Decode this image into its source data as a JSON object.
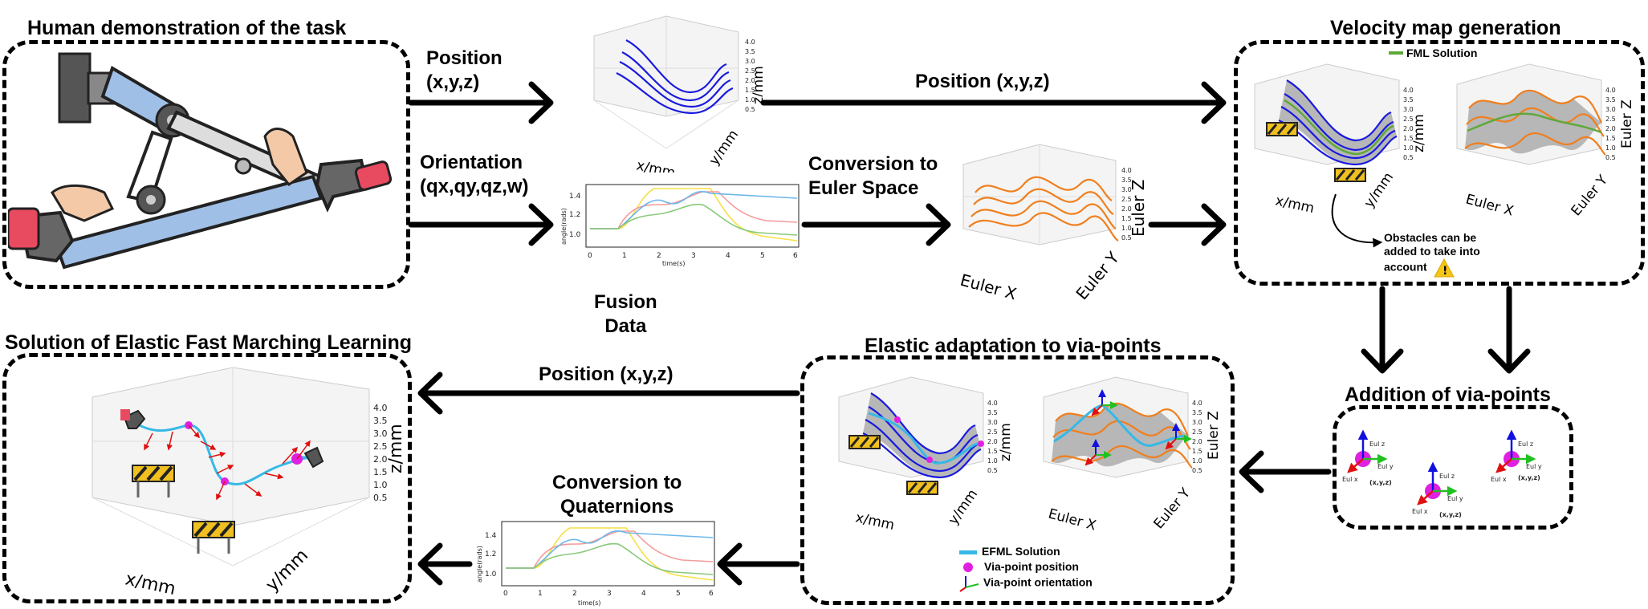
{
  "titles": {
    "human_demo": "Human demonstration of the task",
    "velocity_map": "Velocity map generation",
    "solution_efml": "Solution of Elastic Fast Marching Learning",
    "elastic_adaptation": "Elastic adaptation to via-points",
    "addition_viapoints": "Addition of via-points"
  },
  "flow_labels": {
    "position_1": "Position",
    "position_1b": "(x,y,z)",
    "orientation_1": "Orientation",
    "orientation_1b": "(qx,qy,qz,w)",
    "position_top": "Position (x,y,z)",
    "conversion_euler_1": "Conversion to",
    "conversion_euler_2": "Euler Space",
    "fusion_1": "Fusion",
    "fusion_2": "Data",
    "position_bottom": "Position (x,y,z)",
    "conversion_quat_1": "Conversion to",
    "conversion_quat_2": "Quaternions"
  },
  "axes": {
    "x_mm": "x/mm",
    "y_mm": "y/mm",
    "z_mm": "z/mm",
    "euler_x": "Euler X",
    "euler_y": "Euler Y",
    "euler_z": "Euler Z",
    "angle_rads": "angle(rads)",
    "time_s": "time(s)"
  },
  "legend": {
    "fml_solution": "FML Solution",
    "efml_solution": "EFML Solution",
    "via_position": "Via-point position",
    "via_orientation": "Via-point orientation"
  },
  "obstacle_note": {
    "line1": "Obstacles can be",
    "line2": "added to take into",
    "line3": "account"
  },
  "viapoint_labels": {
    "eul_z": "Eul z",
    "eul_y": "Eul y",
    "eul_x": "Eul x",
    "xyz": "(x,y,z)"
  },
  "time_ticks": [
    "0",
    "1",
    "2",
    "3",
    "4",
    "5",
    "6"
  ],
  "angle_ticks": [
    "1.0",
    "1.2",
    "1.4"
  ],
  "colors": {
    "blue": "#1a1adf",
    "orange": "#f07f1e",
    "green": "#5fa83a",
    "efml": "#35b9e6",
    "magenta": "#e020e0",
    "arrow_red": "#e01010",
    "arrow_green": "#20c020",
    "arrow_blue": "#1010e0"
  }
}
